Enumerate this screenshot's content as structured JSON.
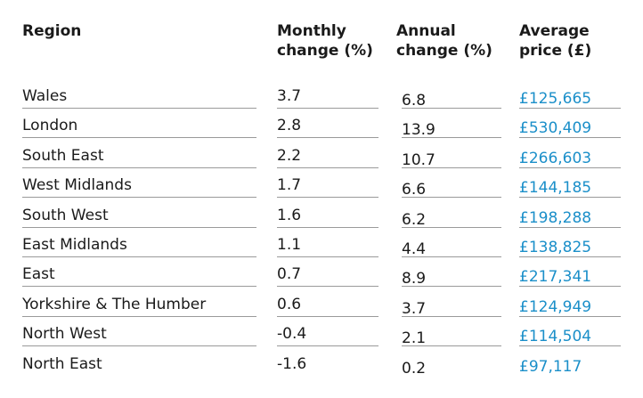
{
  "chart_data": {
    "type": "table",
    "columns": [
      [
        "Region"
      ],
      [
        "Monthly",
        "change (%)"
      ],
      [
        "Annual",
        "change (%)"
      ],
      [
        "Average",
        "price (£)"
      ]
    ],
    "rows": [
      {
        "region": "Wales",
        "monthly": "3.7",
        "annual": "6.8",
        "price": "£125,665"
      },
      {
        "region": "London",
        "monthly": "2.8",
        "annual": "13.9",
        "price": "£530,409"
      },
      {
        "region": "South East",
        "monthly": "2.2",
        "annual": "10.7",
        "price": "£266,603"
      },
      {
        "region": "West Midlands",
        "monthly": "1.7",
        "annual": "6.6",
        "price": "£144,185"
      },
      {
        "region": "South West",
        "monthly": "1.6",
        "annual": "6.2",
        "price": "£198,288"
      },
      {
        "region": "East Midlands",
        "monthly": "1.1",
        "annual": "4.4",
        "price": "£138,825"
      },
      {
        "region": "East",
        "monthly": "0.7",
        "annual": "8.9",
        "price": "£217,341"
      },
      {
        "region": "Yorkshire & The Humber",
        "monthly": "0.6",
        "annual": "3.7",
        "price": "£124,949"
      },
      {
        "region": "North West",
        "monthly": "-0.4",
        "annual": "2.1",
        "price": "£114,504"
      },
      {
        "region": "North East",
        "monthly": "-1.6",
        "annual": "0.2",
        "price": "£97,117"
      }
    ],
    "colors": {
      "text": "#1a1a1a",
      "price_text": "#1b8fc9",
      "rule": "#9a9a9a"
    }
  }
}
